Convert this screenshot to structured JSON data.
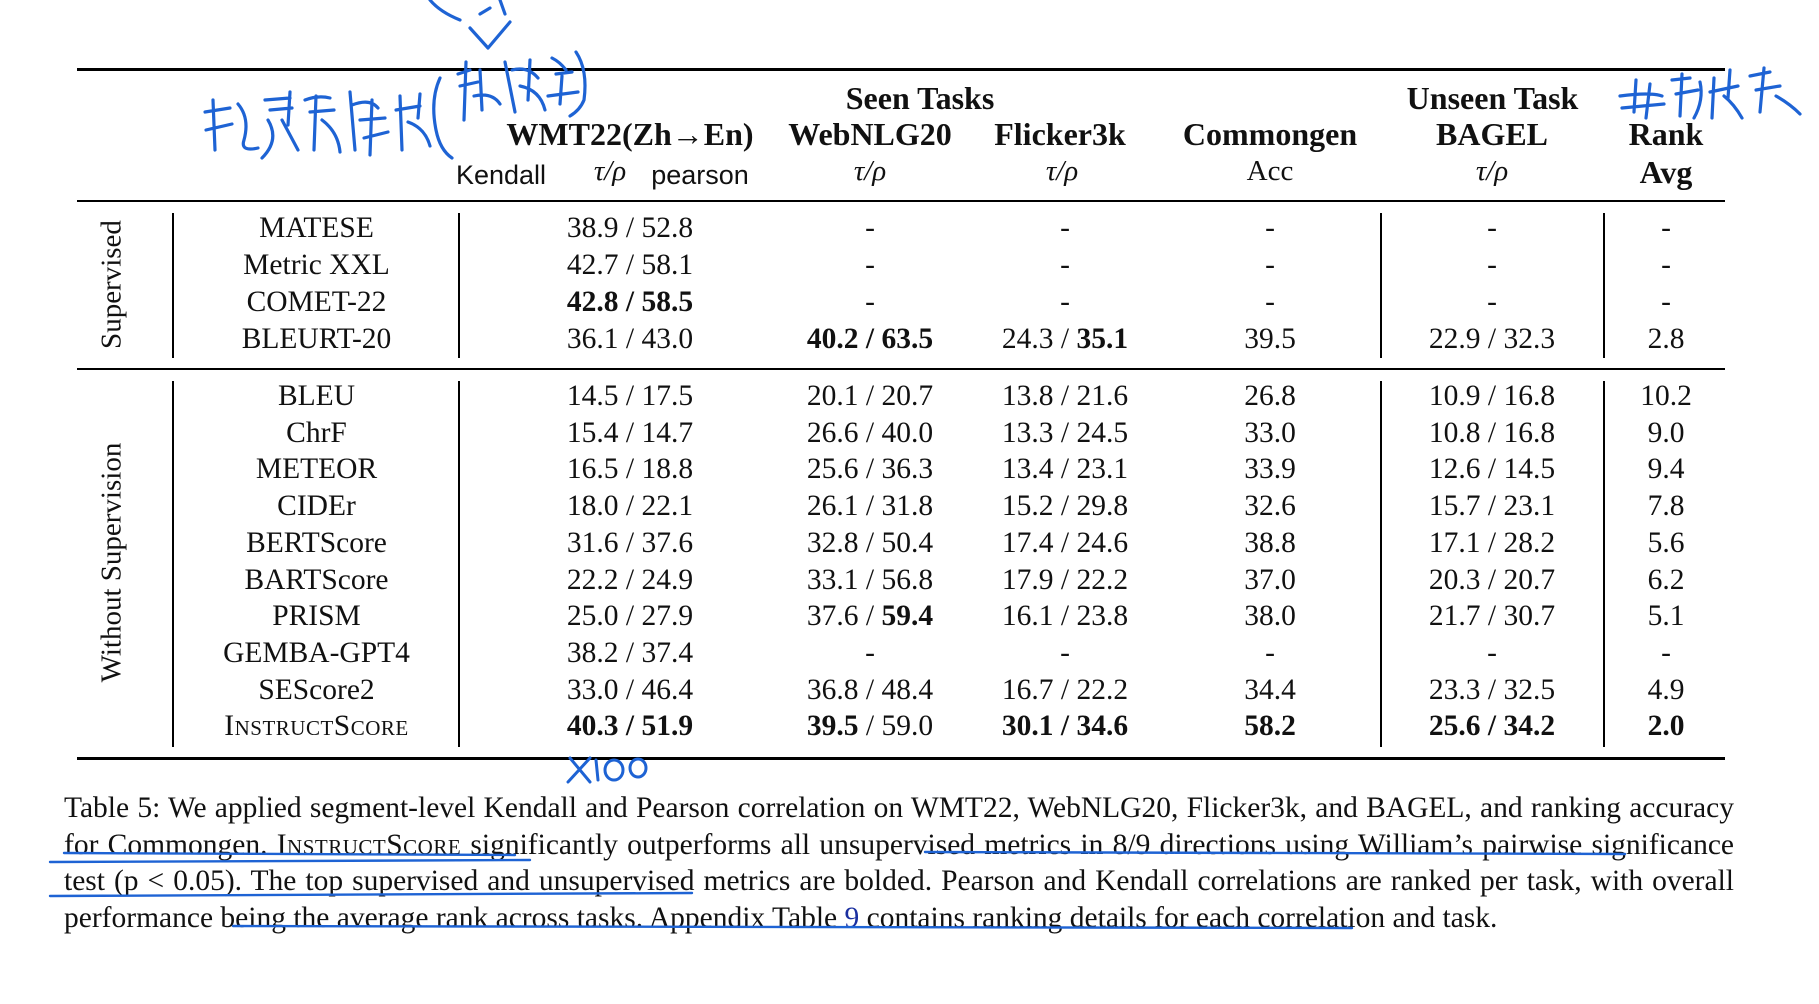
{
  "headers": {
    "seen_tasks": "Seen Tasks",
    "unseen_task": "Unseen Task",
    "wmt": "WMT22(Zh→En)",
    "webnlg": "WebNLG20",
    "flicker": "Flicker3k",
    "commongen": "Commongen",
    "bagel": "BAGEL",
    "rank": "Rank",
    "avg": "Avg",
    "tau_rho": "τ/ρ",
    "acc": "Acc",
    "kendall_note": "Kendall",
    "pearson_note": "pearson"
  },
  "groups": {
    "supervised": "Supervised",
    "without_supervision": "Without Supervision"
  },
  "supervised_rows": [
    {
      "metric": "MATESE",
      "wmt": "38.9 / 52.8",
      "webnlg": "-",
      "flicker": "-",
      "commongen": "-",
      "bagel": "-",
      "rank": "-"
    },
    {
      "metric": "Metric XXL",
      "wmt": "42.7 / 58.1",
      "webnlg": "-",
      "flicker": "-",
      "commongen": "-",
      "bagel": "-",
      "rank": "-"
    },
    {
      "metric": "COMET-22",
      "wmt_a": "42.8",
      "wmt_sep": " / ",
      "wmt_b": "58.5",
      "webnlg": "-",
      "flicker": "-",
      "commongen": "-",
      "bagel": "-",
      "rank": "-"
    },
    {
      "metric": "BLEURT-20",
      "wmt": "36.1 / 43.0",
      "webnlg_a": "40.2",
      "webnlg_sep": " / ",
      "webnlg_b": "63.5",
      "flicker_a": "24.3",
      "flicker_sep": " / ",
      "flicker_b": "35.1",
      "commongen": "39.5",
      "bagel": "22.9 / 32.3",
      "rank": "2.8"
    }
  ],
  "unsupervised_rows": [
    {
      "metric": "BLEU",
      "wmt": "14.5 / 17.5",
      "webnlg": "20.1 / 20.7",
      "flicker": "13.8 / 21.6",
      "commongen": "26.8",
      "bagel": "10.9 / 16.8",
      "rank": "10.2"
    },
    {
      "metric": "ChrF",
      "wmt": "15.4 / 14.7",
      "webnlg": "26.6 / 40.0",
      "flicker": "13.3 / 24.5",
      "commongen": "33.0",
      "bagel": "10.8 / 16.8",
      "rank": "9.0"
    },
    {
      "metric": "METEOR",
      "wmt": "16.5 / 18.8",
      "webnlg": "25.6 / 36.3",
      "flicker": "13.4 / 23.1",
      "commongen": "33.9",
      "bagel": "12.6 / 14.5",
      "rank": "9.4"
    },
    {
      "metric": "CIDEr",
      "wmt": "18.0 / 22.1",
      "webnlg": "26.1 / 31.8",
      "flicker": "15.2 / 29.8",
      "commongen": "32.6",
      "bagel": "15.7 / 23.1",
      "rank": "7.8"
    },
    {
      "metric": "BERTScore",
      "wmt": "31.6 / 37.6",
      "webnlg": "32.8 / 50.4",
      "flicker": "17.4 / 24.6",
      "commongen": "38.8",
      "bagel": "17.1 / 28.2",
      "rank": "5.6"
    },
    {
      "metric": "BARTScore",
      "wmt": "22.2 / 24.9",
      "webnlg": "33.1 / 56.8",
      "flicker": "17.9 / 22.2",
      "commongen": "37.0",
      "bagel": "20.3 / 20.7",
      "rank": "6.2"
    },
    {
      "metric": "PRISM",
      "wmt": "25.0 / 27.9",
      "webnlg_a": "37.6",
      "webnlg_sep": " / ",
      "webnlg_b": "59.4",
      "flicker": "16.1 / 23.8",
      "commongen": "38.0",
      "bagel": "21.7 / 30.7",
      "rank": "5.1"
    },
    {
      "metric": "GEMBA-GPT4",
      "wmt": "38.2 / 37.4",
      "webnlg": "-",
      "flicker": "-",
      "commongen": "-",
      "bagel": "-",
      "rank": "-"
    },
    {
      "metric": "SEScore2",
      "wmt": "33.0 / 46.4",
      "webnlg": "36.8 / 48.4",
      "flicker": "16.7 / 22.2",
      "commongen": "34.4",
      "bagel": "23.3 / 32.5",
      "rank": "4.9"
    },
    {
      "metric": "InstructScore",
      "wmt_a": "40.3",
      "wmt_sep": " / ",
      "wmt_b": "51.9",
      "webnlg_a": "39.5",
      "webnlg_sep": " / ",
      "webnlg_b": "59.0",
      "flicker_a": "30.1",
      "flicker_sep": " / ",
      "flicker_b": "34.6",
      "commongen": "58.2",
      "bagel_a": "25.6",
      "bagel_sep": " / ",
      "bagel_b": "34.2",
      "rank": "2.0"
    }
  ],
  "caption": {
    "part1": "Table 5: We applied segment-level Kendall and Pearson correlation on WMT22, WebNLG20, Flicker3k, and BAGEL, and ranking accuracy for Commongen. ",
    "instructscore": "InstructScore",
    "part2": " significantly outperforms all unsupervised metrics in 8/9 directions using William’s pairwise significance test (p < 0.05). The top supervised and unsupervised metrics are bolded. Pearson and Kendall correlations are ranked per task, with overall performance being the average rank across tasks. Appendix Table ",
    "table_ref": "9",
    "part3": " contains ranking details for each correlation and task."
  },
  "annotations": {
    "ink_color": "#1e63d4",
    "times_100": "x100"
  }
}
